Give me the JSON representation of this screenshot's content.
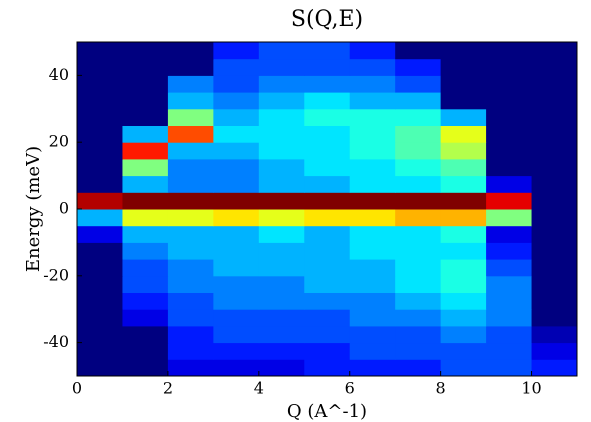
{
  "chart_data": {
    "type": "heatmap",
    "title": "S(Q,E)",
    "xlabel": "Q (A^-1)",
    "ylabel": "Energy (meV)",
    "xlim": [
      0,
      11
    ],
    "ylim": [
      -50,
      50
    ],
    "xticks": [
      0,
      2,
      4,
      6,
      8,
      10
    ],
    "yticks": [
      -40,
      -20,
      0,
      20,
      40
    ],
    "colormap": "jet",
    "clim": [
      0,
      1
    ],
    "x_edges": [
      0,
      1,
      2,
      3,
      4,
      5,
      6,
      7,
      8,
      9,
      10,
      11
    ],
    "y_edges": [
      -50,
      -45,
      -40,
      -35,
      -30,
      -25,
      -20,
      -15,
      -10,
      -5,
      0,
      5,
      10,
      15,
      20,
      25,
      30,
      35,
      40,
      45,
      50
    ],
    "z": [
      [
        0,
        0,
        0.1,
        0.1,
        0.1,
        0.15,
        0.15,
        0.15,
        0.2,
        0.2,
        0.15
      ],
      [
        0,
        0,
        0.15,
        0.15,
        0.15,
        0.15,
        0.2,
        0.2,
        0.2,
        0.2,
        0.1
      ],
      [
        0,
        0,
        0.15,
        0.2,
        0.2,
        0.2,
        0.2,
        0.2,
        0.25,
        0.2,
        0.05
      ],
      [
        0,
        0.1,
        0.2,
        0.2,
        0.2,
        0.2,
        0.25,
        0.25,
        0.3,
        0.25,
        0
      ],
      [
        0,
        0.15,
        0.2,
        0.25,
        0.25,
        0.25,
        0.25,
        0.3,
        0.35,
        0.25,
        0
      ],
      [
        0,
        0.2,
        0.25,
        0.25,
        0.25,
        0.3,
        0.3,
        0.35,
        0.4,
        0.25,
        0
      ],
      [
        0,
        0.2,
        0.25,
        0.3,
        0.3,
        0.3,
        0.3,
        0.35,
        0.4,
        0.2,
        0
      ],
      [
        0,
        0.25,
        0.3,
        0.3,
        0.3,
        0.3,
        0.35,
        0.35,
        0.35,
        0.15,
        0
      ],
      [
        0.1,
        0.3,
        0.3,
        0.3,
        0.35,
        0.3,
        0.35,
        0.35,
        0.4,
        0.1,
        0
      ],
      [
        0.3,
        0.6,
        0.6,
        0.65,
        0.6,
        0.65,
        0.65,
        0.7,
        0.7,
        0.5,
        0
      ],
      [
        0.95,
        1,
        1,
        1,
        1,
        1,
        1,
        1,
        1,
        0.9,
        0
      ],
      [
        0,
        0.3,
        0.25,
        0.25,
        0.3,
        0.3,
        0.35,
        0.35,
        0.4,
        0.1,
        0
      ],
      [
        0,
        0.5,
        0.25,
        0.25,
        0.3,
        0.35,
        0.35,
        0.4,
        0.45,
        0,
        0
      ],
      [
        0,
        0.85,
        0.3,
        0.3,
        0.35,
        0.35,
        0.4,
        0.45,
        0.55,
        0,
        0
      ],
      [
        0,
        0.3,
        0.8,
        0.35,
        0.35,
        0.35,
        0.4,
        0.45,
        0.6,
        0,
        0
      ],
      [
        0,
        0,
        0.5,
        0.3,
        0.35,
        0.4,
        0.4,
        0.4,
        0.3,
        0,
        0
      ],
      [
        0,
        0,
        0.3,
        0.25,
        0.3,
        0.35,
        0.3,
        0.3,
        0,
        0,
        0
      ],
      [
        0,
        0,
        0.25,
        0.2,
        0.25,
        0.25,
        0.25,
        0.2,
        0,
        0,
        0
      ],
      [
        0,
        0,
        0,
        0.2,
        0.2,
        0.2,
        0.2,
        0.15,
        0,
        0,
        0
      ],
      [
        0,
        0,
        0,
        0.15,
        0.2,
        0.2,
        0.15,
        0,
        0,
        0,
        0
      ]
    ]
  }
}
